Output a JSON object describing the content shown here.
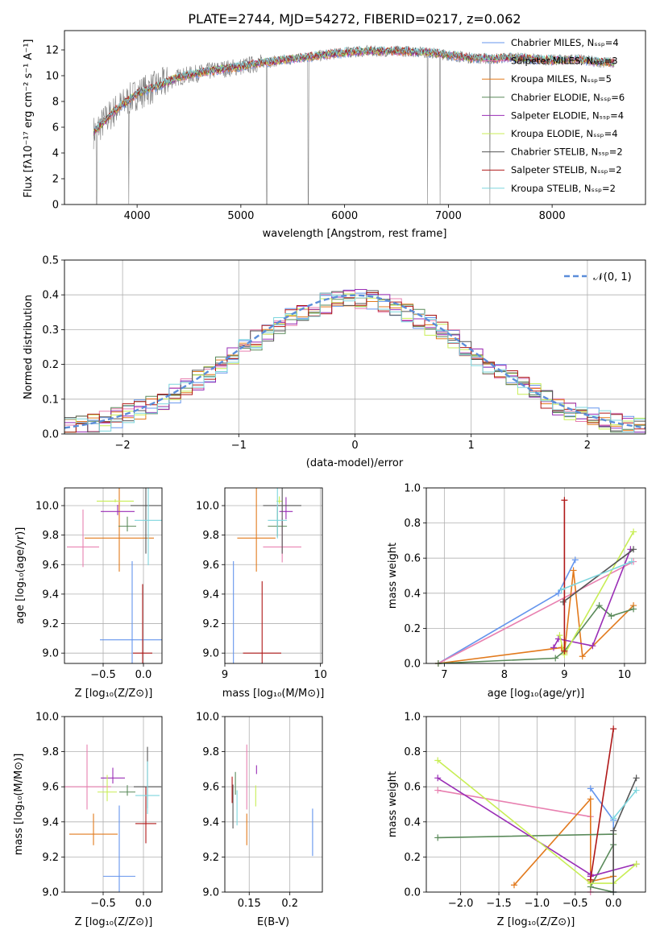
{
  "figure_title": "PLATE=2744, MJD=54272, FIBERID=0217, z=0.062",
  "palette": [
    "#6495ED",
    "#E880B0",
    "#E27A1D",
    "#5A8A5A",
    "#9A2EB6",
    "#C8EE55",
    "#555555",
    "#B01818",
    "#7ED6DE"
  ],
  "chart_data": [
    {
      "id": "spectrum",
      "type": "line",
      "xlabel": "wavelength [Angstrom, rest frame]",
      "ylabel": "Flux [fλ10⁻¹⁷ erg cm⁻² s⁻¹ A⁻¹]",
      "xlim": [
        3300,
        8900
      ],
      "ylim": [
        0,
        13.5
      ],
      "xticks": [
        4000,
        5000,
        6000,
        7000,
        8000
      ],
      "yticks": [
        0,
        2,
        4,
        6,
        8,
        10,
        12
      ],
      "legend_position": "right",
      "legend": [
        {
          "label": "Chabrier MILES, Nₛₛₚ=4",
          "color": "#6495ED"
        },
        {
          "label": "Salpeter MILES, Nₛₛₚ=3",
          "color": "#E880B0"
        },
        {
          "label": "Kroupa MILES, Nₛₛₚ=5",
          "color": "#E27A1D"
        },
        {
          "label": "Chabrier ELODIE, Nₛₛₚ=6",
          "color": "#5A8A5A"
        },
        {
          "label": "Salpeter ELODIE, Nₛₛₚ=4",
          "color": "#9A2EB6"
        },
        {
          "label": "Kroupa ELODIE, Nₛₛₚ=4",
          "color": "#C8EE55"
        },
        {
          "label": "Chabrier STELIB, Nₛₛₚ=2",
          "color": "#555555"
        },
        {
          "label": "Salpeter STELIB, Nₛₛₚ=2",
          "color": "#B01818"
        },
        {
          "label": "Kroupa STELIB, Nₛₛₚ=2",
          "color": "#7ED6DE"
        }
      ],
      "continuum_x": [
        3580,
        3700,
        3800,
        3900,
        4000,
        4200,
        4400,
        4600,
        4800,
        5000,
        5200,
        5400,
        5600,
        5800,
        6000,
        6200,
        6400,
        6600,
        6800,
        7000,
        7200,
        7400,
        7600,
        7800,
        8000,
        8200,
        8400,
        8600
      ],
      "continuum_y": [
        5.6,
        6.6,
        7.4,
        8.0,
        8.6,
        9.2,
        9.9,
        10.2,
        10.5,
        10.7,
        11.0,
        11.2,
        11.4,
        11.6,
        11.8,
        11.9,
        11.9,
        11.9,
        11.8,
        11.6,
        11.4,
        11.3,
        11.4,
        11.3,
        11.2,
        11.3,
        11.1,
        11.0
      ],
      "data_dropouts_x": [
        3610,
        3920,
        5250,
        5650,
        6800,
        6920,
        7400
      ]
    },
    {
      "id": "residuals",
      "type": "histogram",
      "xlabel": "(data-model)/error",
      "ylabel": "Normed distribution",
      "xlim": [
        -2.5,
        2.5
      ],
      "ylim": [
        0,
        0.5
      ],
      "xticks": [
        -2,
        -1,
        0,
        1,
        2
      ],
      "xtick_labels": [
        "−2",
        "−1",
        "0",
        "1",
        "2"
      ],
      "yticks": [
        0.0,
        0.1,
        0.2,
        0.3,
        0.4,
        0.5
      ],
      "bin_width": 0.1,
      "reference_curve": {
        "label": "𝒩(0, 1)",
        "color": "#5B8DD9",
        "style": "dashed"
      },
      "legend_position": "upper right",
      "grid": true
    },
    {
      "id": "age-vs-Z",
      "type": "errorbar",
      "xlabel": "Z [log₁₀(Z/Z⊙)]",
      "ylabel": "age  [log₁₀(age/yr)]",
      "xlim": [
        -0.98,
        0.23
      ],
      "ylim": [
        8.93,
        10.12
      ],
      "xticks": [
        -0.5,
        0.0
      ],
      "xtick_labels": [
        "−0.5",
        "0.0"
      ],
      "yticks": [
        9.0,
        9.2,
        9.4,
        9.6,
        9.8,
        10.0
      ],
      "grid": true,
      "points": [
        {
          "x": -0.14,
          "y": 9.09,
          "xerr": 0.4,
          "yerr": 0.82
        },
        {
          "x": -0.75,
          "y": 9.72,
          "xerr": 0.2,
          "yerr": 0.39
        },
        {
          "x": -0.3,
          "y": 9.78,
          "xerr": 0.43,
          "yerr": 0.65
        },
        {
          "x": -0.2,
          "y": 9.86,
          "xerr": 0.11,
          "yerr": 0.1
        },
        {
          "x": -0.32,
          "y": 9.96,
          "xerr": 0.21,
          "yerr": 0.07
        },
        {
          "x": -0.35,
          "y": 10.03,
          "xerr": 0.23,
          "yerr": 0.02
        },
        {
          "x": 0.03,
          "y": 10.0,
          "xerr": 0.19,
          "yerr": 0.93
        },
        {
          "x": -0.01,
          "y": 9.0,
          "xerr": 0.12,
          "yerr": 0.72
        },
        {
          "x": 0.06,
          "y": 9.9,
          "xerr": 0.17,
          "yerr": 0.87
        }
      ]
    },
    {
      "id": "age-vs-mass",
      "type": "errorbar",
      "xlabel": "mass [log₁₀(M/M⊙)]",
      "ylabel": "",
      "xlim": [
        9.0,
        10.02
      ],
      "ylim": [
        8.93,
        10.12
      ],
      "xticks": [
        9,
        10
      ],
      "yticks": [
        9.0,
        9.2,
        9.4,
        9.6,
        9.8,
        10.0
      ],
      "grid": true,
      "points": [
        {
          "x": 9.09,
          "y": 9.09,
          "xerr": 0.0,
          "yerr": 0.82
        },
        {
          "x": 9.6,
          "y": 9.72,
          "xerr": 0.2,
          "yerr": 0.3
        },
        {
          "x": 9.33,
          "y": 9.78,
          "xerr": 0.2,
          "yerr": 0.65
        },
        {
          "x": 9.55,
          "y": 9.86,
          "xerr": 0.1,
          "yerr": 0.2
        },
        {
          "x": 9.64,
          "y": 9.96,
          "xerr": 0.07,
          "yerr": 0.15
        },
        {
          "x": 9.57,
          "y": 10.03,
          "xerr": 0.03,
          "yerr": 0.05
        },
        {
          "x": 9.6,
          "y": 10.0,
          "xerr": 0.2,
          "yerr": 0.93
        },
        {
          "x": 9.39,
          "y": 9.0,
          "xerr": 0.2,
          "yerr": 0.75
        },
        {
          "x": 9.55,
          "y": 9.9,
          "xerr": 0.1,
          "yerr": 0.35
        }
      ]
    },
    {
      "id": "weight-vs-age",
      "type": "line",
      "xlabel": "age  [log₁₀(age/yr)]",
      "ylabel": "mass weight",
      "xlim": [
        6.7,
        10.35
      ],
      "ylim": [
        0.0,
        1.0
      ],
      "xticks": [
        7,
        8,
        9,
        10
      ],
      "yticks": [
        0.0,
        0.2,
        0.4,
        0.6,
        0.8,
        1.0
      ],
      "grid": true,
      "series": [
        {
          "x": [
            6.9,
            8.9,
            9.18
          ],
          "y": [
            0.0,
            0.4,
            0.59
          ]
        },
        {
          "x": [
            6.9,
            10.15
          ],
          "y": [
            0.0,
            0.58
          ]
        },
        {
          "x": [
            6.9,
            8.95,
            9.0,
            9.15,
            9.3,
            10.15
          ],
          "y": [
            0.0,
            0.09,
            0.06,
            0.53,
            0.04,
            0.33
          ]
        },
        {
          "x": [
            6.9,
            8.85,
            9.0,
            9.58,
            9.78,
            10.15
          ],
          "y": [
            0.0,
            0.03,
            0.07,
            0.33,
            0.27,
            0.31
          ]
        },
        {
          "x": [
            8.82,
            8.9,
            9.47,
            10.1
          ],
          "y": [
            0.09,
            0.14,
            0.1,
            0.65
          ]
        },
        {
          "x": [
            8.92,
            9.0,
            10.15
          ],
          "y": [
            0.16,
            0.05,
            0.75
          ]
        },
        {
          "x": [
            8.98,
            10.15
          ],
          "y": [
            0.35,
            0.65
          ]
        },
        {
          "x": [
            9.0,
            9.0
          ],
          "y": [
            0.07,
            0.93
          ]
        },
        {
          "x": [
            8.95,
            10.12
          ],
          "y": [
            0.42,
            0.58
          ]
        }
      ]
    },
    {
      "id": "mass-vs-Z",
      "type": "errorbar",
      "xlabel": "Z [log₁₀(Z/Z⊙)]",
      "ylabel": "mass [log₁₀(M/M⊙)]",
      "xlim": [
        -0.98,
        0.23
      ],
      "ylim": [
        9.0,
        10.0
      ],
      "xticks": [
        -0.5,
        0.0
      ],
      "xtick_labels": [
        "−0.5",
        "0.0"
      ],
      "yticks": [
        9.0,
        9.2,
        9.4,
        9.6,
        9.8,
        10.0
      ],
      "grid": true,
      "points": [
        {
          "x": -0.3,
          "y": 9.09,
          "xerr": 0.2,
          "yerr": 0.62
        },
        {
          "x": -0.7,
          "y": 9.6,
          "xerr": 0.3,
          "yerr": 0.37
        },
        {
          "x": -0.62,
          "y": 9.33,
          "xerr": 0.3,
          "yerr": 0.18
        },
        {
          "x": -0.2,
          "y": 9.57,
          "xerr": 0.1,
          "yerr": 0.06
        },
        {
          "x": -0.38,
          "y": 9.65,
          "xerr": 0.15,
          "yerr": 0.09
        },
        {
          "x": -0.45,
          "y": 9.57,
          "xerr": 0.12,
          "yerr": 0.15
        },
        {
          "x": 0.05,
          "y": 9.6,
          "xerr": 0.17,
          "yerr": 0.35
        },
        {
          "x": 0.03,
          "y": 9.39,
          "xerr": 0.13,
          "yerr": 0.32
        },
        {
          "x": 0.05,
          "y": 9.55,
          "xerr": 0.15,
          "yerr": 0.3
        }
      ]
    },
    {
      "id": "mass-vs-ebv",
      "type": "errorbar",
      "xlabel": "E(B-V)",
      "ylabel": "",
      "xlim": [
        0.12,
        0.24
      ],
      "ylim": [
        9.0,
        10.0
      ],
      "xticks": [
        0.15,
        0.2
      ],
      "yticks": [
        9.0,
        9.2,
        9.4,
        9.6,
        9.8,
        10.0
      ],
      "grid": true,
      "points": [
        {
          "x": 0.228,
          "y": 9.3,
          "xerr": 0,
          "yerr": 0.27
        },
        {
          "x": 0.147,
          "y": 9.6,
          "xerr": 0,
          "yerr": 0.37
        },
        {
          "x": 0.147,
          "y": 9.33,
          "xerr": 0,
          "yerr": 0.18
        },
        {
          "x": 0.133,
          "y": 9.6,
          "xerr": 0,
          "yerr": 0.13
        },
        {
          "x": 0.159,
          "y": 9.69,
          "xerr": 0,
          "yerr": 0.05
        },
        {
          "x": 0.158,
          "y": 9.53,
          "xerr": 0,
          "yerr": 0.12
        },
        {
          "x": 0.13,
          "y": 9.45,
          "xerr": 0,
          "yerr": 0.25
        },
        {
          "x": 0.129,
          "y": 9.56,
          "xerr": 0,
          "yerr": 0.15
        },
        {
          "x": 0.135,
          "y": 9.45,
          "xerr": 0,
          "yerr": 0.2
        }
      ]
    },
    {
      "id": "weight-vs-Z",
      "type": "line",
      "xlabel": "Z [log₁₀(Z/Z⊙)]",
      "ylabel": "mass weight",
      "xlim": [
        -2.45,
        0.42
      ],
      "ylim": [
        0.0,
        1.0
      ],
      "xticks": [
        -2.0,
        -1.5,
        -1.0,
        -0.5,
        0.0
      ],
      "xtick_labels": [
        "−2.0",
        "−1.5",
        "−1.0",
        "−0.5",
        "0.0"
      ],
      "yticks": [
        0.0,
        0.2,
        0.4,
        0.6,
        0.8,
        1.0
      ],
      "grid": true,
      "series": [
        {
          "x": [
            -0.3,
            0.0,
            0.0
          ],
          "y": [
            0.59,
            0.41,
            0.0
          ]
        },
        {
          "x": [
            -2.3,
            -0.3,
            -0.3
          ],
          "y": [
            0.58,
            0.43,
            0.0
          ]
        },
        {
          "x": [
            -1.3,
            -0.3,
            -0.3,
            0.0,
            0.0
          ],
          "y": [
            0.04,
            0.53,
            0.06,
            0.09,
            0.33
          ]
        },
        {
          "x": [
            -2.3,
            0.0,
            0.0,
            -0.3,
            0.0
          ],
          "y": [
            0.31,
            0.33,
            0.27,
            0.03,
            0.0
          ]
        },
        {
          "x": [
            -2.3,
            -0.3,
            -0.3,
            0.3
          ],
          "y": [
            0.65,
            0.1,
            0.09,
            0.16
          ]
        },
        {
          "x": [
            -2.3,
            -0.3,
            0.0,
            0.3
          ],
          "y": [
            0.75,
            0.05,
            0.05,
            0.16
          ]
        },
        {
          "x": [
            0.3,
            0.0,
            0.0
          ],
          "y": [
            0.65,
            0.35,
            0.0
          ]
        },
        {
          "x": [
            0.0,
            -0.3
          ],
          "y": [
            0.93,
            0.07
          ]
        },
        {
          "x": [
            0.3,
            0.0
          ],
          "y": [
            0.58,
            0.42
          ]
        }
      ]
    }
  ]
}
